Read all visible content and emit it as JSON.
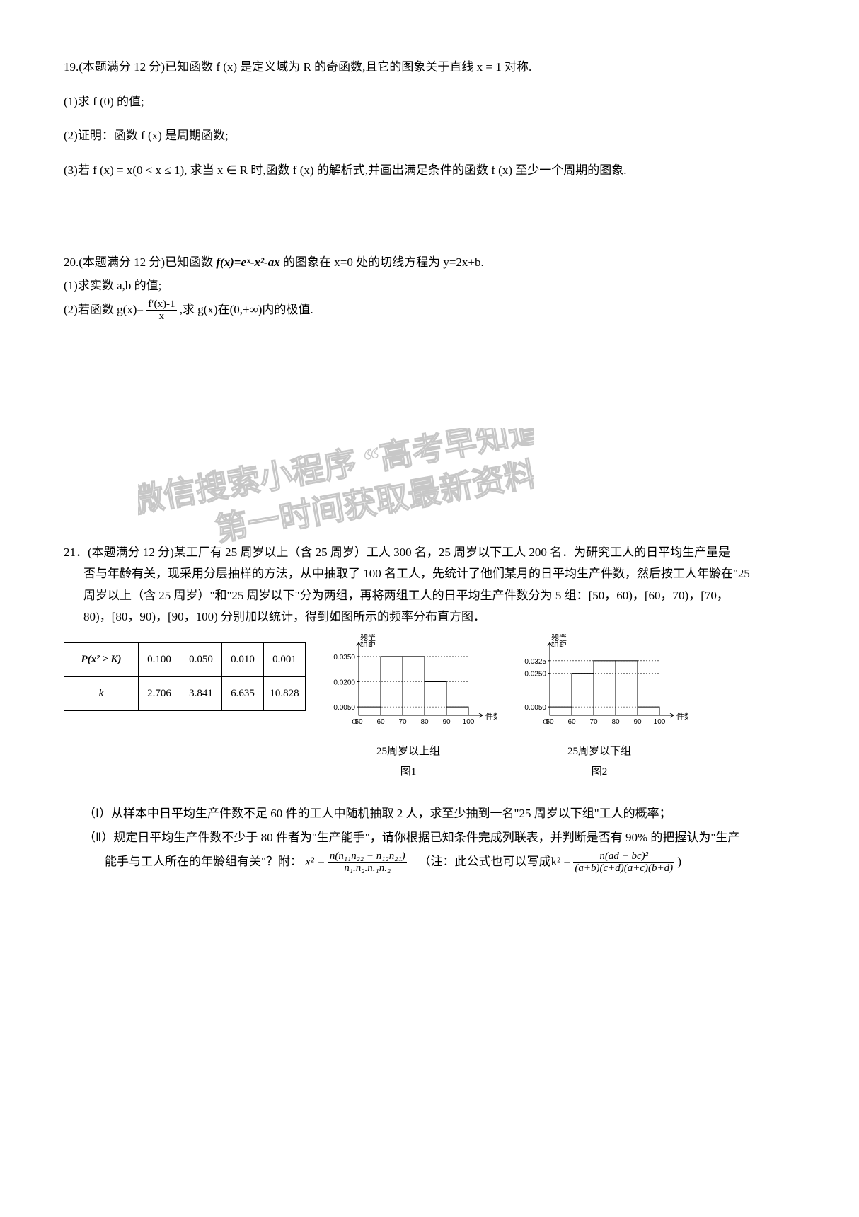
{
  "q19": {
    "intro": "19.(本题满分 12 分)已知函数 f (x) 是定义域为 R 的奇函数,且它的图象关于直线 x = 1 对称.",
    "p1": "(1)求 f (0) 的值;",
    "p2": "(2)证明：函数 f (x) 是周期函数;",
    "p3": "(3)若 f (x) = x(0 < x ≤ 1), 求当 x ∈ R 时,函数 f (x) 的解析式,并画出满足条件的函数 f (x) 至少一个周期的图象."
  },
  "q20": {
    "l1_a": "20.(本题满分 12 分)已知函数 ",
    "l1_b": " 的图象在 x=0 处的切线方程为 y=2x+b.",
    "fx": "f(x)=eˣ-x²-ax",
    "l2": "(1)求实数 a,b 的值;",
    "l3_a": "(2)若函数 g(x)=",
    "l3_b": ",求 g(x)在(0,+∞)内的极值.",
    "frac_num": "f′(x)-1",
    "frac_den": "x"
  },
  "watermark": {
    "line1": "微信搜索小程序 \"高考早知道\"",
    "line2": "第一时间获取最新资料"
  },
  "q21": {
    "head": "21．(本题满分 12 分)某工厂有 25 周岁以上（含 25 周岁）工人 300 名，25 周岁以下工人 200 名．为研究工人的日平均生产量是",
    "body1": "否与年龄有关，现采用分层抽样的方法，从中抽取了 100 名工人，先统计了他们某月的日平均生产件数，然后按工人年龄在\"25",
    "body2": "周岁以上（含 25 周岁）\"和\"25 周岁以下\"分为两组，再将两组工人的日平均生产件数分为 5 组：[50，60)，[60，70)，[70，",
    "body3": "80)，[80，90)，[90，100) 分别加以统计，得到如图所示的频率分布直方图．",
    "ktable": {
      "r1c1": "P(x² ≥ K)",
      "r1": [
        "0.100",
        "0.050",
        "0.010",
        "0.001"
      ],
      "r2c1": "k",
      "r2": [
        "2.706",
        "3.841",
        "6.635",
        "10.828"
      ]
    },
    "chart1": {
      "ylabel": "频率\n组距",
      "yticks": [
        "0.0350",
        "0.0200",
        "0.0050"
      ],
      "xvals": [
        "50",
        "60",
        "70",
        "80",
        "90",
        "100"
      ],
      "xlabel": "件数",
      "caption1": "25周岁以上组",
      "caption2": "图1",
      "bars": [
        0.005,
        0.035,
        0.035,
        0.02,
        0.005
      ],
      "ymax": 0.04,
      "axis_color": "#000000",
      "bar_stroke": "#000000",
      "bar_fill": "none",
      "dash_color": "#000000"
    },
    "chart2": {
      "ylabel": "频率\n组距",
      "yticks": [
        "0.0325",
        "0.0250",
        "0.0050"
      ],
      "xvals": [
        "50",
        "60",
        "70",
        "80",
        "90",
        "100"
      ],
      "xlabel": "件数",
      "caption1": "25周岁以下组",
      "caption2": "图2",
      "bars": [
        0.005,
        0.025,
        0.0325,
        0.0325,
        0.005
      ],
      "ymax": 0.04,
      "axis_color": "#000000",
      "bar_stroke": "#000000",
      "bar_fill": "none",
      "dash_color": "#000000"
    },
    "part1": "（Ⅰ）从样本中日平均生产件数不足 60 件的工人中随机抽取 2 人，求至少抽到一名\"25 周岁以下组\"工人的概率；",
    "part2a": "（Ⅱ）规定日平均生产件数不少于 80 件者为\"生产能手\"，请你根据已知条件完成列联表，并判断是否有 90% 的把握认为\"生产",
    "part2b_pre": "能手与工人所在的年龄组有关\"？附：",
    "formula_k2": "x² =",
    "frac1_num": "n(n₁₁n₂₂ − n₁₂n₂₁)",
    "frac1_den": "n₁.n₂.n.₁n.₂",
    "note": "（注：此公式也可以写成k² =",
    "frac2_num": "n(ad − bc)²",
    "frac2_den": "(a+b)(c+d)(a+c)(b+d)",
    "close": ")"
  }
}
